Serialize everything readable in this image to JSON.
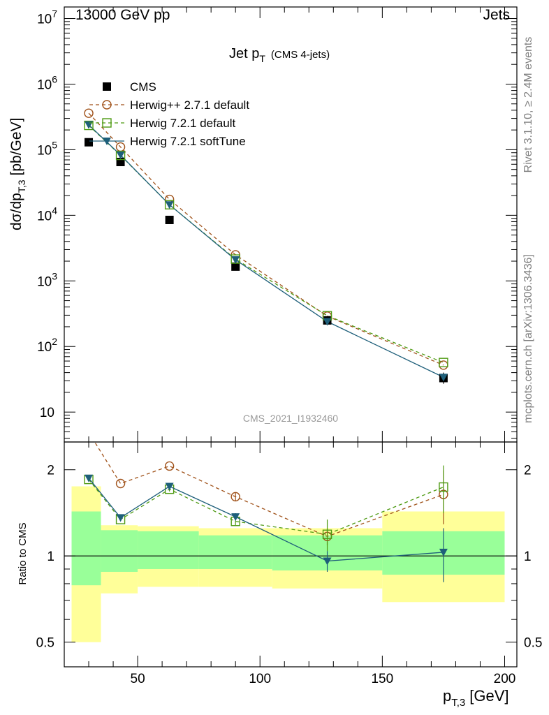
{
  "header": {
    "left": "13000 GeV pp",
    "right": "Jets"
  },
  "side_text": {
    "rivet": "Rivet 3.1.10, ≥ 2.4M events",
    "mcplots": "mcplots.cern.ch [arXiv:1306.3436]"
  },
  "analysis_id": "CMS_2021_I1932460",
  "colors": {
    "cms": "#000000",
    "herwigpp": "#a0521a",
    "herwig721": "#4e9a12",
    "softtune": "#1e5f7a",
    "band_inner": "#99ff99",
    "band_outer": "#ffff99"
  },
  "chart_data": [
    {
      "type": "line",
      "title_main": "Jet p",
      "title_sub": "T",
      "title_tag": "(CMS 4-jets)",
      "ylabel_main": "dσ/dp",
      "ylabel_sub": "T,3",
      "ylabel_unit": "[pb/GeV]",
      "yscale": "log",
      "xlim": [
        20,
        205
      ],
      "ylim": [
        3.5,
        15000000
      ],
      "y_ticks": [
        10,
        100,
        1000,
        10000,
        100000,
        1000000,
        10000000
      ],
      "y_tick_labels": [
        "10",
        "10",
        "10",
        "10",
        "10",
        "10",
        "10"
      ],
      "y_tick_exps": [
        "",
        "2",
        "3",
        "4",
        "5",
        "6",
        "7"
      ],
      "legend_position": "top-left",
      "series": [
        {
          "name": "CMS",
          "x": [
            30,
            43,
            63,
            90,
            127.5,
            175
          ],
          "y": [
            130000,
            65000,
            8500,
            1650,
            250,
            33
          ],
          "marker": "square-filled",
          "line": "none"
        },
        {
          "name": "Herwig++ 2.7.1 default",
          "x": [
            30,
            43,
            63,
            90,
            127.5,
            175
          ],
          "y": [
            360000,
            110000,
            17500,
            2500,
            290,
            52
          ],
          "marker": "circle-open",
          "line": "dashed"
        },
        {
          "name": "Herwig 7.2.1 default",
          "x": [
            30,
            43,
            63,
            90,
            127.5,
            175
          ],
          "y": [
            235000,
            82000,
            14500,
            2150,
            295,
            57
          ],
          "marker": "square-open",
          "line": "dashed"
        },
        {
          "name": "Herwig 7.2.1 softTune",
          "x": [
            30,
            43,
            63,
            90,
            127.5,
            175
          ],
          "y": [
            240000,
            83000,
            14500,
            2100,
            240,
            34
          ],
          "marker": "triangle-down-filled",
          "line": "solid"
        }
      ]
    },
    {
      "type": "line",
      "xlabel_main": "p",
      "xlabel_sub": "T,3",
      "xlabel_unit": "[GeV]",
      "ylabel": "Ratio to CMS",
      "yscale": "log",
      "xlim": [
        20,
        205
      ],
      "ylim": [
        0.41,
        2.5
      ],
      "x_ticks": [
        50,
        100,
        150,
        200
      ],
      "x_tick_labels": [
        "50",
        "100",
        "150",
        "200"
      ],
      "y_ticks": [
        0.5,
        1,
        2
      ],
      "y_tick_labels": [
        "0.5",
        "1",
        "2"
      ],
      "bands": [
        {
          "x0": 23,
          "x1": 35,
          "inner": [
            0.79,
            1.43
          ],
          "outer": [
            0.5,
            1.75
          ]
        },
        {
          "x0": 35,
          "x1": 50,
          "inner": [
            0.88,
            1.23
          ],
          "outer": [
            0.74,
            1.28
          ]
        },
        {
          "x0": 50,
          "x1": 75,
          "inner": [
            0.9,
            1.22
          ],
          "outer": [
            0.78,
            1.27
          ]
        },
        {
          "x0": 75,
          "x1": 105,
          "inner": [
            0.9,
            1.18
          ],
          "outer": [
            0.78,
            1.25
          ]
        },
        {
          "x0": 105,
          "x1": 150,
          "inner": [
            0.89,
            1.18
          ],
          "outer": [
            0.77,
            1.25
          ]
        },
        {
          "x0": 150,
          "x1": 200,
          "inner": [
            0.86,
            1.22
          ],
          "outer": [
            0.69,
            1.43
          ]
        }
      ],
      "series": [
        {
          "name": "Herwig++ 2.7.1 default",
          "x": [
            30,
            43,
            63,
            90,
            127.5,
            175
          ],
          "y": [
            2.7,
            1.79,
            2.06,
            1.61,
            1.17,
            1.64
          ],
          "err": [
            0,
            0,
            0,
            0.05,
            0.08,
            0.35
          ]
        },
        {
          "name": "Herwig 7.2.1 default",
          "x": [
            30,
            43,
            63,
            90,
            127.5,
            175
          ],
          "y": [
            1.85,
            1.34,
            1.71,
            1.32,
            1.19,
            1.74
          ],
          "err": [
            0,
            0,
            0.03,
            0.04,
            0.15,
            0.33
          ]
        },
        {
          "name": "Herwig 7.2.1 softTune",
          "x": [
            30,
            43,
            63,
            90,
            127.5,
            175
          ],
          "y": [
            1.87,
            1.36,
            1.75,
            1.37,
            0.96,
            1.03
          ],
          "err": [
            0,
            0,
            0.03,
            0.04,
            0.08,
            0.22
          ]
        }
      ]
    }
  ]
}
